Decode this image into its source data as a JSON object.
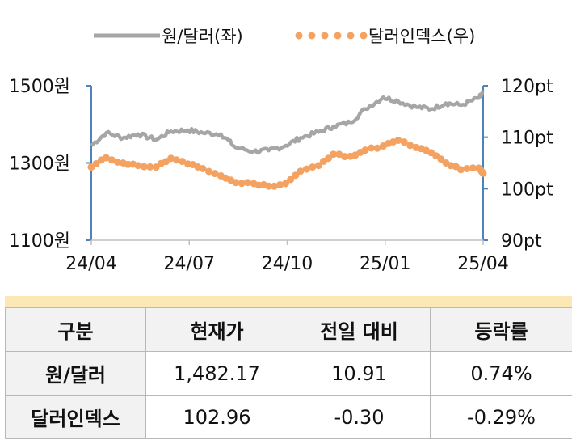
{
  "chart_data": {
    "type": "line",
    "legend": {
      "placement": "top-center",
      "items": [
        {
          "label": "원/달러(좌)",
          "style": "line",
          "color": "#a6a6a6"
        },
        {
          "label": "달러인덱스(우)",
          "style": "dots",
          "color": "#f4a261"
        }
      ]
    },
    "x_ticks": [
      "24/04",
      "24/07",
      "24/10",
      "25/01",
      "25/04"
    ],
    "x_range": [
      "2024-04-01",
      "2025-04-05"
    ],
    "y_left": {
      "ticks": [
        "1500원",
        "1300원",
        "1100원"
      ],
      "tick_values": [
        1500,
        1300,
        1100
      ],
      "range": [
        1100,
        1500
      ]
    },
    "y_right": {
      "ticks": [
        "120pt",
        "110pt",
        "100pt",
        "90pt"
      ],
      "tick_values": [
        120,
        110,
        100,
        90
      ],
      "range": [
        90,
        120
      ]
    },
    "series": [
      {
        "name": "원/달러(좌)",
        "axis": "left",
        "color": "#a6a6a6",
        "x": [
          "2024-04-01",
          "2024-04-15",
          "2024-05-01",
          "2024-05-15",
          "2024-06-01",
          "2024-06-15",
          "2024-07-01",
          "2024-07-15",
          "2024-08-01",
          "2024-08-15",
          "2024-09-01",
          "2024-09-15",
          "2024-10-01",
          "2024-10-15",
          "2024-11-01",
          "2024-11-15",
          "2024-12-01",
          "2024-12-15",
          "2025-01-01",
          "2025-01-15",
          "2025-02-01",
          "2025-02-15",
          "2025-03-01",
          "2025-03-15",
          "2025-04-01",
          "2025-04-05"
        ],
        "values": [
          1345,
          1378,
          1365,
          1375,
          1360,
          1382,
          1385,
          1378,
          1375,
          1340,
          1330,
          1332,
          1345,
          1365,
          1380,
          1395,
          1405,
          1440,
          1470,
          1460,
          1445,
          1440,
          1455,
          1450,
          1468,
          1482
        ]
      },
      {
        "name": "달러인덱스(우)",
        "axis": "right",
        "color": "#f4a261",
        "x": [
          "2024-04-01",
          "2024-04-15",
          "2024-05-01",
          "2024-05-15",
          "2024-06-01",
          "2024-06-15",
          "2024-07-01",
          "2024-07-15",
          "2024-08-01",
          "2024-08-15",
          "2024-09-01",
          "2024-09-15",
          "2024-10-01",
          "2024-10-15",
          "2024-11-01",
          "2024-11-15",
          "2024-12-01",
          "2024-12-15",
          "2025-01-01",
          "2025-01-15",
          "2025-02-01",
          "2025-02-15",
          "2025-03-01",
          "2025-03-15",
          "2025-04-01",
          "2025-04-05"
        ],
        "values": [
          104.2,
          106.0,
          105.0,
          104.5,
          104.2,
          105.9,
          104.8,
          103.9,
          102.5,
          101.2,
          101.0,
          100.5,
          101.0,
          103.4,
          104.5,
          106.7,
          106.3,
          107.5,
          108.3,
          109.4,
          108.0,
          107.0,
          105.0,
          103.7,
          104.0,
          103.0
        ]
      }
    ]
  },
  "table": {
    "headers": [
      "구분",
      "현재가",
      "전일 대비",
      "등락률"
    ],
    "rows": [
      [
        "원/달러",
        "1,482.17",
        "10.91",
        "0.74%"
      ],
      [
        "달러인덱스",
        "102.96",
        "-0.30",
        "-0.29%"
      ]
    ]
  }
}
